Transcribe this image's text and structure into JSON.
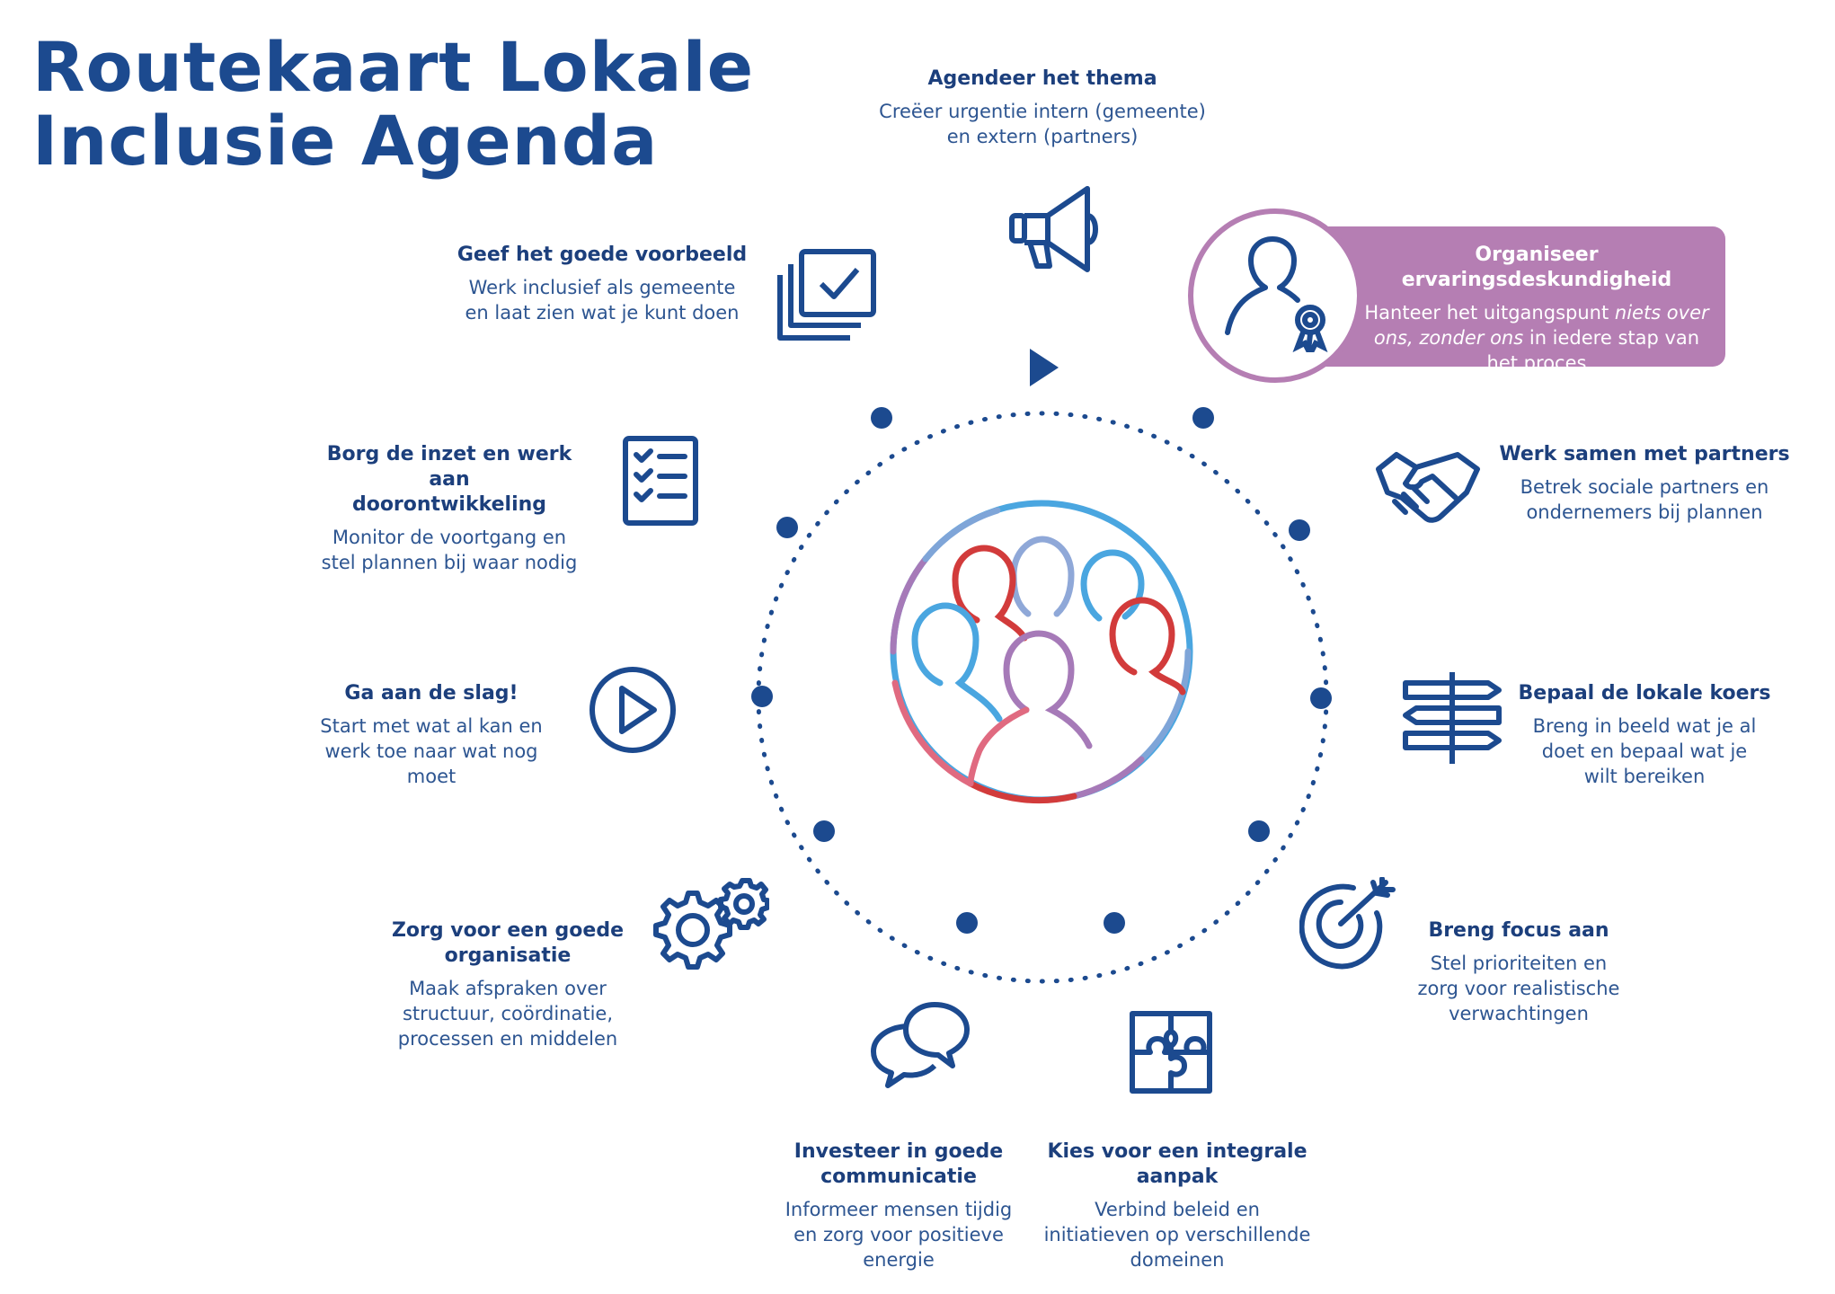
{
  "title": {
    "line1": "Routekaart Lokale",
    "line2": "Inclusie Agenda"
  },
  "colors": {
    "primary": "#1c4a8f",
    "highlight": "#b57eb3",
    "red": "#d23b3b",
    "lightblue": "#4aa6e0",
    "purple": "#a67ab8"
  },
  "steps": {
    "agendeer": {
      "title": "Agendeer het thema",
      "desc1": "Creëer urgentie intern (gemeente)",
      "desc2": "en extern (partners)",
      "icon": "megaphone-icon"
    },
    "ervaring": {
      "title": "Organiseer ervaringsdeskundigheid",
      "desc1a": "Hanteer het uitgangspunt",
      "desc1b": "niets over",
      "desc2a": "ons, zonder ons",
      "desc2b": "in iedere stap van",
      "desc3": "het proces",
      "icon": "person-award-icon"
    },
    "samen": {
      "title": "Werk samen met partners",
      "desc1": "Betrek sociale partners en",
      "desc2": "ondernemers bij plannen",
      "icon": "handshake-icon"
    },
    "koers": {
      "title": "Bepaal de lokale koers",
      "desc1": "Breng in beeld wat je al",
      "desc2": "doet en bepaal wat je",
      "desc3": "wilt bereiken",
      "icon": "signpost-icon"
    },
    "focus": {
      "title": "Breng focus aan",
      "desc1": "Stel prioriteiten en",
      "desc2": "zorg voor realistische",
      "desc3": "verwachtingen",
      "icon": "target-icon"
    },
    "integraal": {
      "title1": "Kies voor een integrale",
      "title2": "aanpak",
      "desc1": "Verbind beleid en",
      "desc2": "initiatieven op verschillende",
      "desc3": "domeinen",
      "icon": "puzzle-icon"
    },
    "communicatie": {
      "title1": "Investeer in goede",
      "title2": "communicatie",
      "desc1": "Informeer mensen tijdig",
      "desc2": "en zorg voor positieve",
      "desc3": "energie",
      "icon": "speech-bubbles-icon"
    },
    "organisatie": {
      "title1": "Zorg voor een goede",
      "title2": "organisatie",
      "desc1": "Maak afspraken over",
      "desc2": "structuur, coördinatie,",
      "desc3": "processen en middelen",
      "icon": "gears-icon"
    },
    "slag": {
      "title": "Ga aan de slag!",
      "desc1": "Start met wat al kan en",
      "desc2": "werk toe naar wat nog",
      "desc3": "moet",
      "icon": "play-icon"
    },
    "borg": {
      "title1": "Borg de inzet en werk aan",
      "title2": "doorontwikkeling",
      "desc1": "Monitor de voortgang en",
      "desc2": "stel plannen bij waar nodig",
      "icon": "checklist-icon"
    },
    "voorbeeld": {
      "title": "Geef het goede voorbeeld",
      "desc1": "Werk inclusief als gemeente",
      "desc2": "en laat zien wat je kunt doen",
      "icon": "checked-cards-icon"
    }
  },
  "center": {
    "icon": "group-of-people-icon"
  }
}
